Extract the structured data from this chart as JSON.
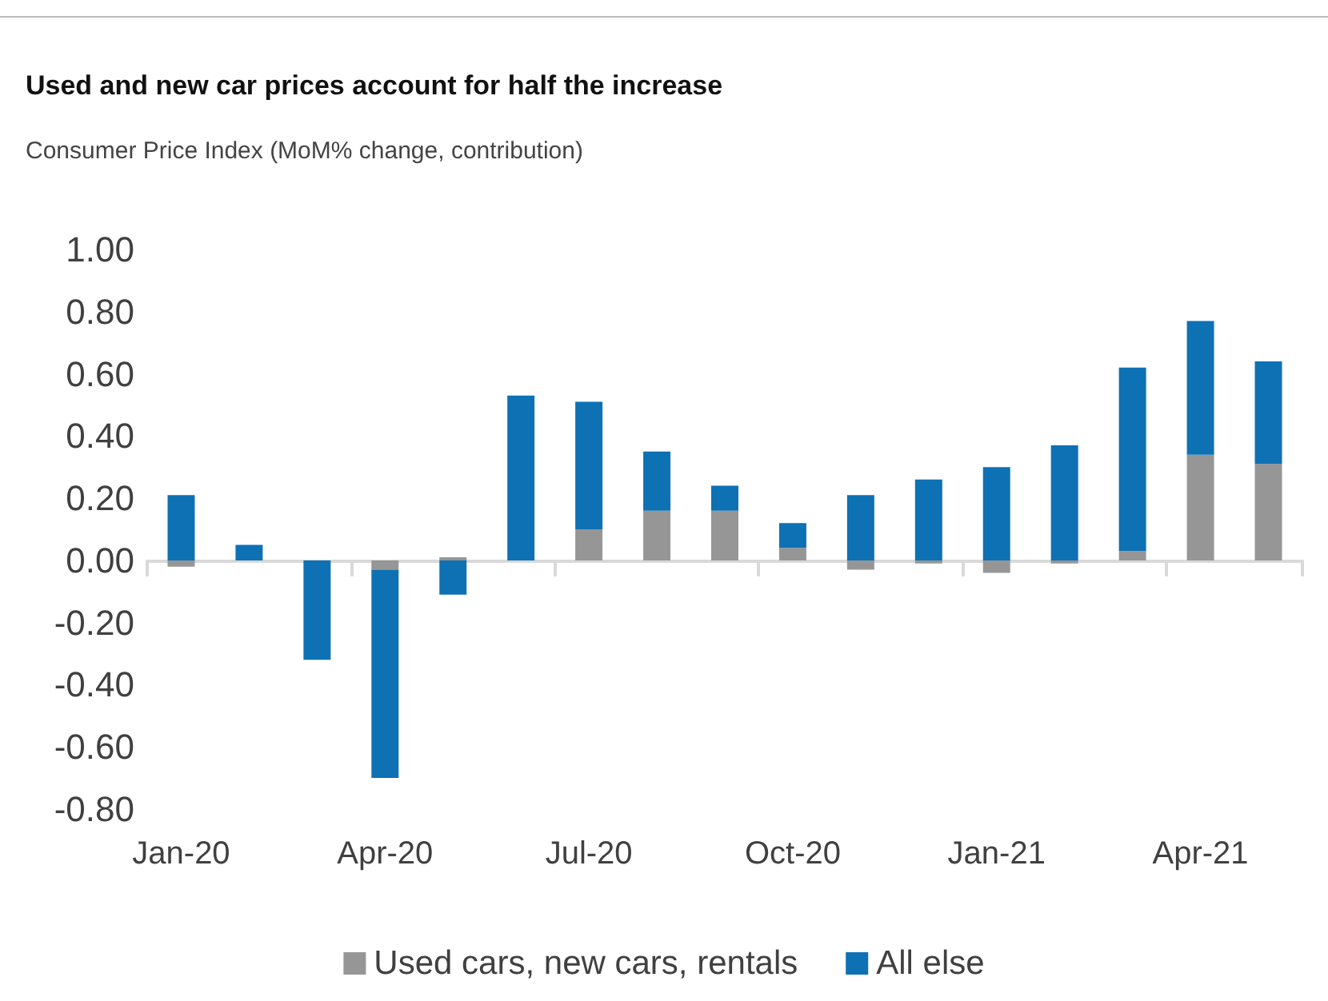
{
  "chart_data": {
    "type": "bar",
    "title": "Used and new car prices account for half the increase",
    "subtitle": "Consumer Price Index (MoM% change, contribution)",
    "categories": [
      "Jan-20",
      null,
      null,
      "Apr-20",
      null,
      null,
      "Jul-20",
      null,
      null,
      "Oct-20",
      null,
      null,
      "Jan-21",
      null,
      null,
      "Apr-21",
      null
    ],
    "stacked": true,
    "series": [
      {
        "name": "Used cars, new cars, rentals",
        "color": "#969696",
        "values": [
          -0.02,
          0,
          0,
          -0.03,
          0.01,
          0,
          0.1,
          0.16,
          0.16,
          0.04,
          -0.03,
          -0.01,
          -0.04,
          -0.01,
          0.03,
          0.34,
          0.31
        ]
      },
      {
        "name": "All else",
        "color": "#0d71b4",
        "values": [
          0.21,
          0.05,
          -0.32,
          -0.67,
          -0.11,
          0.53,
          0.41,
          0.19,
          0.08,
          0.08,
          0.21,
          0.26,
          0.3,
          0.37,
          0.59,
          0.43,
          0.33
        ]
      }
    ],
    "ylim": [
      -0.8,
      1.0
    ],
    "yticks": [
      {
        "value": -0.8,
        "label": "-0.80"
      },
      {
        "value": -0.6,
        "label": "-0.60"
      },
      {
        "value": -0.4,
        "label": "-0.40"
      },
      {
        "value": -0.2,
        "label": "-0.20"
      },
      {
        "value": 0,
        "label": "0.00"
      },
      {
        "value": 0.2,
        "label": "0.20"
      },
      {
        "value": 0.4,
        "label": "0.40"
      },
      {
        "value": 0.6,
        "label": "0.60"
      },
      {
        "value": 0.8,
        "label": "0.80"
      },
      {
        "value": 1,
        "label": "1.00"
      }
    ],
    "legend": "bottom"
  }
}
